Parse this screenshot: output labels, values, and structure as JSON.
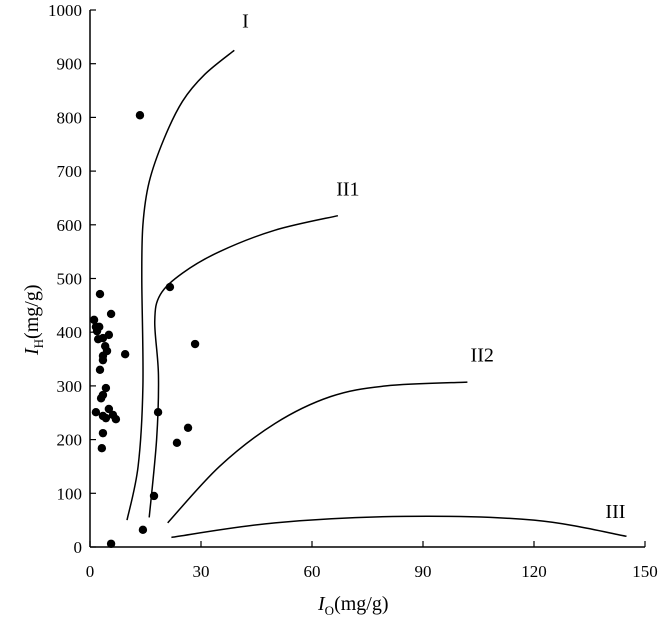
{
  "chart_data": {
    "type": "scatter",
    "title": "",
    "xlabel": {
      "main": "I",
      "sub": "O",
      "unit": "(mg/g)"
    },
    "ylabel": {
      "main": "I",
      "sub": "H",
      "unit": "(mg/g)"
    },
    "xlim": [
      0,
      150
    ],
    "ylim": [
      0,
      1000
    ],
    "xticks": [
      0,
      30,
      60,
      90,
      120,
      150
    ],
    "yticks": [
      0,
      100,
      200,
      300,
      400,
      500,
      600,
      700,
      800,
      900,
      1000
    ],
    "grid": false,
    "points": [
      [
        13.5,
        804
      ],
      [
        21.6,
        484
      ],
      [
        28.4,
        378
      ],
      [
        9.5,
        359
      ],
      [
        2.7,
        471
      ],
      [
        5.7,
        434
      ],
      [
        1.1,
        423
      ],
      [
        1.6,
        410
      ],
      [
        2.5,
        410
      ],
      [
        5.1,
        395
      ],
      [
        1.9,
        402
      ],
      [
        2.2,
        387
      ],
      [
        3.5,
        389
      ],
      [
        4.1,
        374
      ],
      [
        4.6,
        365
      ],
      [
        3.5,
        356
      ],
      [
        3.5,
        348
      ],
      [
        2.7,
        330
      ],
      [
        4.3,
        296
      ],
      [
        3.5,
        283
      ],
      [
        3.0,
        277
      ],
      [
        1.6,
        251
      ],
      [
        5.1,
        257
      ],
      [
        3.5,
        244
      ],
      [
        4.3,
        240
      ],
      [
        6.2,
        246
      ],
      [
        7.0,
        238
      ],
      [
        3.5,
        212
      ],
      [
        3.2,
        184
      ],
      [
        18.4,
        251
      ],
      [
        26.5,
        222
      ],
      [
        23.5,
        194
      ],
      [
        17.3,
        95
      ],
      [
        14.3,
        32
      ],
      [
        5.7,
        6
      ]
    ],
    "curves": [
      {
        "name": "I",
        "label_at": [
          42,
          967
        ],
        "points": [
          [
            10,
            50
          ],
          [
            13,
            150
          ],
          [
            14.3,
            300
          ],
          [
            14,
            500
          ],
          [
            14.3,
            600
          ],
          [
            16,
            680
          ],
          [
            20,
            760
          ],
          [
            25,
            830
          ],
          [
            31,
            880
          ],
          [
            39,
            925
          ]
        ]
      },
      {
        "name": "II1",
        "label_at": [
          69.7,
          655
        ],
        "points": [
          [
            16,
            55
          ],
          [
            18,
            200
          ],
          [
            18.5,
            320
          ],
          [
            17.5,
            420
          ],
          [
            19,
            470
          ],
          [
            25,
            510
          ],
          [
            35,
            550
          ],
          [
            50,
            590
          ],
          [
            67,
            617
          ]
        ]
      },
      {
        "name": "II2",
        "label_at": [
          106,
          345
        ],
        "points": [
          [
            21,
            45
          ],
          [
            35,
            150
          ],
          [
            50,
            230
          ],
          [
            65,
            280
          ],
          [
            80,
            300
          ],
          [
            102,
            307
          ]
        ]
      },
      {
        "name": "III",
        "label_at": [
          142,
          54
        ],
        "points": [
          [
            22,
            18
          ],
          [
            50,
            45
          ],
          [
            85,
            57
          ],
          [
            120,
            50
          ],
          [
            145,
            20
          ]
        ]
      }
    ]
  }
}
